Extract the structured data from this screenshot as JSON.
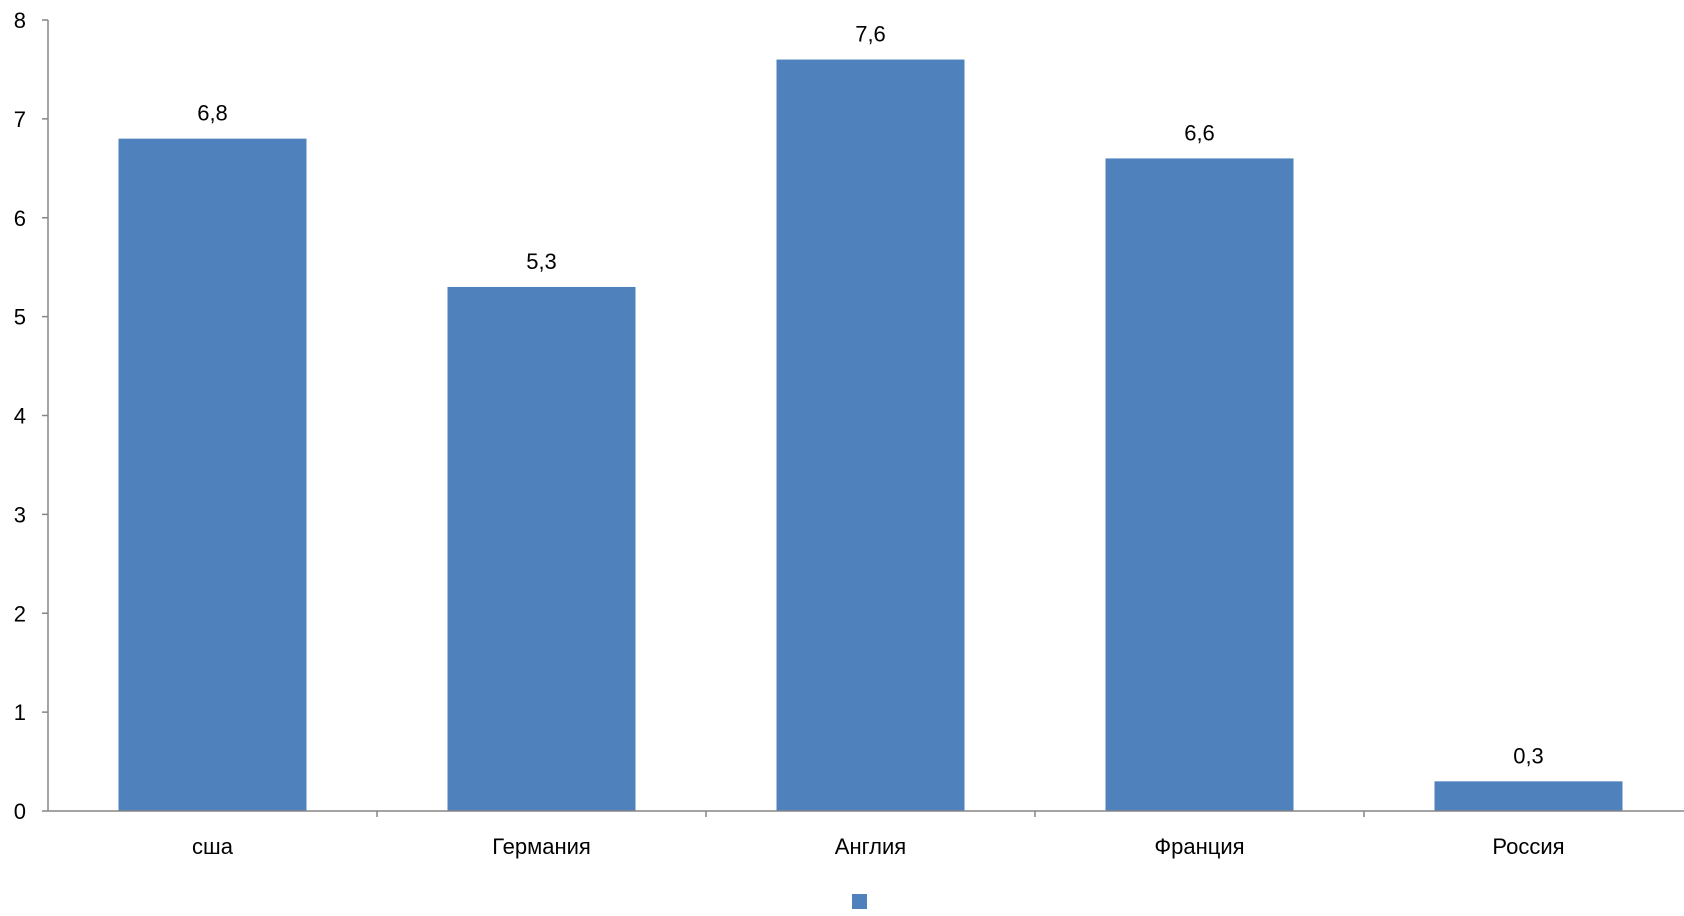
{
  "chart_data": {
    "type": "bar",
    "title": "",
    "xlabel": "",
    "ylabel": "",
    "categories": [
      "сша",
      "Германия",
      "Англия",
      "Франция",
      "Россия"
    ],
    "values": [
      6.8,
      5.3,
      7.6,
      6.6,
      0.3
    ],
    "data_labels": [
      "6,8",
      "5,3",
      "7,6",
      "6,6",
      "0,3"
    ],
    "ylim": [
      0,
      8
    ],
    "yticks": [
      "0",
      "1",
      "2",
      "3",
      "4",
      "5",
      "6",
      "7",
      "8"
    ],
    "grid": false,
    "legend": {
      "position": "bottom",
      "entries": [
        ""
      ]
    },
    "colors": {
      "bar": "#4f81bd",
      "axis": "#868686"
    }
  }
}
